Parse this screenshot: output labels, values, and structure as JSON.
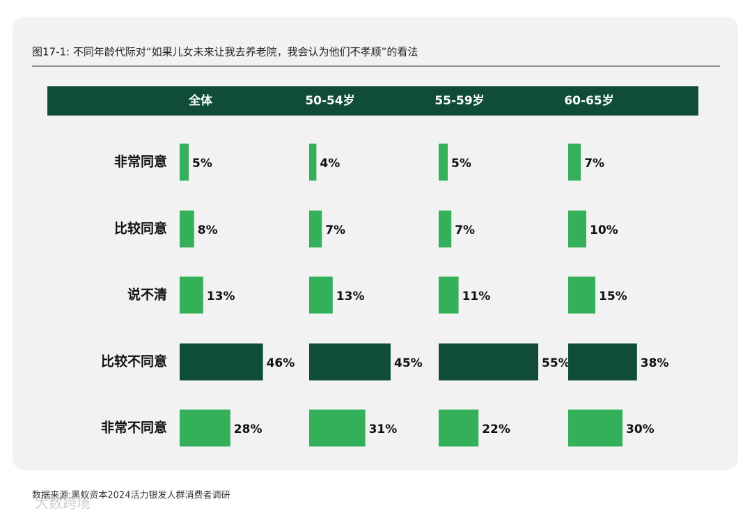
{
  "chart_data": {
    "type": "bar",
    "title": "图17-1: 不同年龄代际对“如果儿女未来让我去养老院，我会认为他们不孝顺”的看法",
    "categories": [
      "非常同意",
      "比较同意",
      "说不清",
      "比较不同意",
      "非常不同意"
    ],
    "colors": [
      "#34b05a",
      "#34b05a",
      "#34b05a",
      "#0f4d3a",
      "#34b05a"
    ],
    "series": [
      {
        "name": "全体",
        "values": [
          5,
          8,
          13,
          46,
          28
        ],
        "value_labels": [
          "5%",
          "8%",
          "13%",
          "46%",
          "28%"
        ]
      },
      {
        "name": "50-54岁",
        "values": [
          4,
          7,
          13,
          45,
          31
        ],
        "value_labels": [
          "4%",
          "7%",
          "13%",
          "45%",
          "31%"
        ]
      },
      {
        "name": "55-59岁",
        "values": [
          5,
          7,
          11,
          55,
          22
        ],
        "value_labels": [
          "5%",
          "7%",
          "11%",
          "55%",
          "22%"
        ]
      },
      {
        "name": "60-65岁",
        "values": [
          7,
          10,
          15,
          38,
          30
        ],
        "value_labels": [
          "7%",
          "10%",
          "15%",
          "38%",
          "30%"
        ]
      }
    ],
    "source": "数据来源:黑蚁资本2024活力银发人群消费者调研",
    "watermark": "大数跨境"
  }
}
